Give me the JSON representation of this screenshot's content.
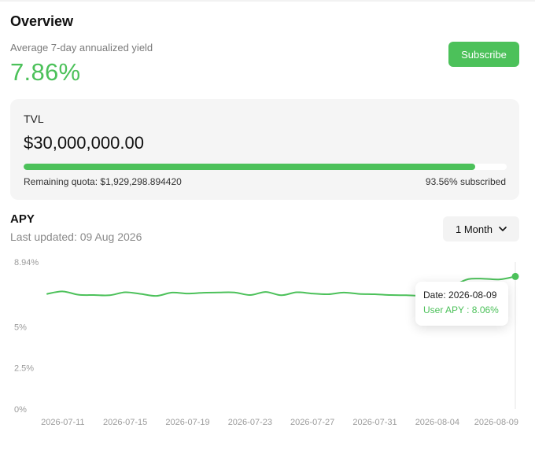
{
  "overview": {
    "title": "Overview",
    "yield_label": "Average 7-day annualized yield",
    "yield_value": "7.86%",
    "subscribe_label": "Subscribe"
  },
  "tvl": {
    "label": "TVL",
    "value": "$30,000,000.00",
    "progress_percent": 93.56,
    "remaining_quota": "Remaining quota: $1,929,298.894420",
    "subscribed_text": "93.56% subscribed"
  },
  "apy": {
    "title": "APY",
    "last_updated": "Last updated: 09 Aug 2026",
    "period_label": "1 Month",
    "period_icon": "chevron-down-icon"
  },
  "tooltip": {
    "date": "Date: 2026-08-09",
    "value": "User APY : 8.06%"
  },
  "colors": {
    "accent": "#4cc15a",
    "card_bg": "#f5f5f5"
  },
  "chart_data": {
    "type": "line",
    "title": "",
    "xlabel": "",
    "ylabel": "",
    "ylim": [
      0,
      8.94
    ],
    "y_ticks": [
      "0%",
      "2.5%",
      "5%",
      "8.94%"
    ],
    "y_tick_values": [
      0,
      2.5,
      5,
      8.94
    ],
    "x_ticks": [
      "2026-07-11",
      "2026-07-15",
      "2026-07-19",
      "2026-07-23",
      "2026-07-27",
      "2026-07-31",
      "2026-08-04",
      "2026-08-09"
    ],
    "x_tick_dates": [
      "2026-07-11",
      "2026-07-15",
      "2026-07-19",
      "2026-07-23",
      "2026-07-27",
      "2026-07-31",
      "2026-08-04",
      "2026-08-09"
    ],
    "grid": false,
    "series": [
      {
        "name": "User APY",
        "x": [
          "2026-07-10",
          "2026-07-11",
          "2026-07-12",
          "2026-07-13",
          "2026-07-14",
          "2026-07-15",
          "2026-07-16",
          "2026-07-17",
          "2026-07-18",
          "2026-07-19",
          "2026-07-20",
          "2026-07-21",
          "2026-07-22",
          "2026-07-23",
          "2026-07-24",
          "2026-07-25",
          "2026-07-26",
          "2026-07-27",
          "2026-07-28",
          "2026-07-29",
          "2026-07-30",
          "2026-07-31",
          "2026-08-01",
          "2026-08-02",
          "2026-08-03",
          "2026-08-04",
          "2026-08-05",
          "2026-08-06",
          "2026-08-07",
          "2026-08-08",
          "2026-08-09"
        ],
        "y": [
          7.0,
          7.15,
          6.95,
          6.93,
          6.92,
          7.1,
          7.0,
          6.88,
          7.08,
          7.02,
          7.07,
          7.09,
          7.09,
          6.93,
          7.12,
          6.92,
          7.1,
          7.02,
          6.98,
          7.08,
          7.0,
          6.98,
          6.93,
          6.92,
          6.95,
          7.6,
          7.55,
          7.9,
          7.92,
          7.88,
          8.06
        ]
      }
    ],
    "highlight": {
      "x": "2026-08-09",
      "y": 8.06
    }
  }
}
